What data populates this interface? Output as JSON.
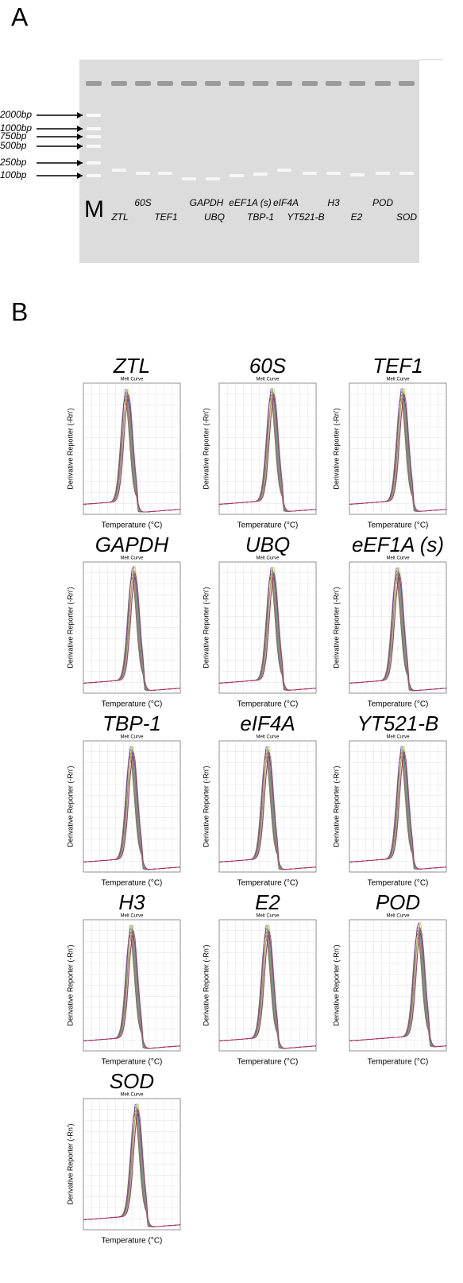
{
  "panel_a": {
    "label": "A",
    "marker_labels": [
      "2000bp",
      "1000bp",
      "750bp",
      "500bp",
      "250bp",
      "100bp"
    ],
    "marker_lane": "M",
    "lane_labels": [
      "60S",
      "GAPDH",
      "eEF1A (s)",
      "eIF4A",
      "H3",
      "POD",
      "ZTL",
      "TEF1",
      "UBQ",
      "TBP-1",
      "YT521-B",
      "E2",
      "SOD"
    ]
  },
  "panel_b": {
    "label": "B",
    "plots": [
      {
        "title": "ZTL",
        "subtitle": "Melt Curve",
        "x_label": "Temperature (°C)",
        "y_label": "Derivative Reporter (-Rn')"
      },
      {
        "title": "60S",
        "subtitle": "Melt Curve",
        "x_label": "Temperature (°C)",
        "y_label": "Derivative Reporter (-Rn')"
      },
      {
        "title": "TEF1",
        "subtitle": "Melt Curve",
        "x_label": "Temperature (°C)",
        "y_label": "Derivative Reporter (-Rn')"
      },
      {
        "title": "GAPDH",
        "subtitle": "Melt Curve",
        "x_label": "Temperature (°C)",
        "y_label": "Derivative Reporter (-Rn')"
      },
      {
        "title": "UBQ",
        "subtitle": "Melt Curve",
        "x_label": "Temperature (°C)",
        "y_label": "Derivative Reporter (-Rn')"
      },
      {
        "title": "eEF1A (s)",
        "subtitle": "Melt Curve",
        "x_label": "Temperature (°C)",
        "y_label": "Derivative Reporter (-Rn')"
      },
      {
        "title": "TBP-1",
        "subtitle": "Melt Curve",
        "x_label": "Temperature (°C)",
        "y_label": "Derivative Reporter (-Rn')"
      },
      {
        "title": "eIF4A",
        "subtitle": "Melt Curve",
        "x_label": "Temperature (°C)",
        "y_label": "Derivative Reporter (-Rn')"
      },
      {
        "title": "YT521-B",
        "subtitle": "Melt Curve",
        "x_label": "Temperature (°C)",
        "y_label": "Derivative Reporter (-Rn')"
      },
      {
        "title": "H3",
        "subtitle": "Melt Curve",
        "x_label": "Temperature (°C)",
        "y_label": "Derivative Reporter (-Rn')"
      },
      {
        "title": "E2",
        "subtitle": "Melt Curve",
        "x_label": "Temperature (°C)",
        "y_label": "Derivative Reporter (-Rn')"
      },
      {
        "title": "POD",
        "subtitle": "Melt Curve",
        "x_label": "Temperature (°C)",
        "y_label": "Derivative Reporter (-Rn')"
      },
      {
        "title": "SOD",
        "subtitle": "Melt Curve",
        "x_label": "Temperature (°C)",
        "y_label": "Derivative Reporter (-Rn')"
      }
    ]
  }
}
